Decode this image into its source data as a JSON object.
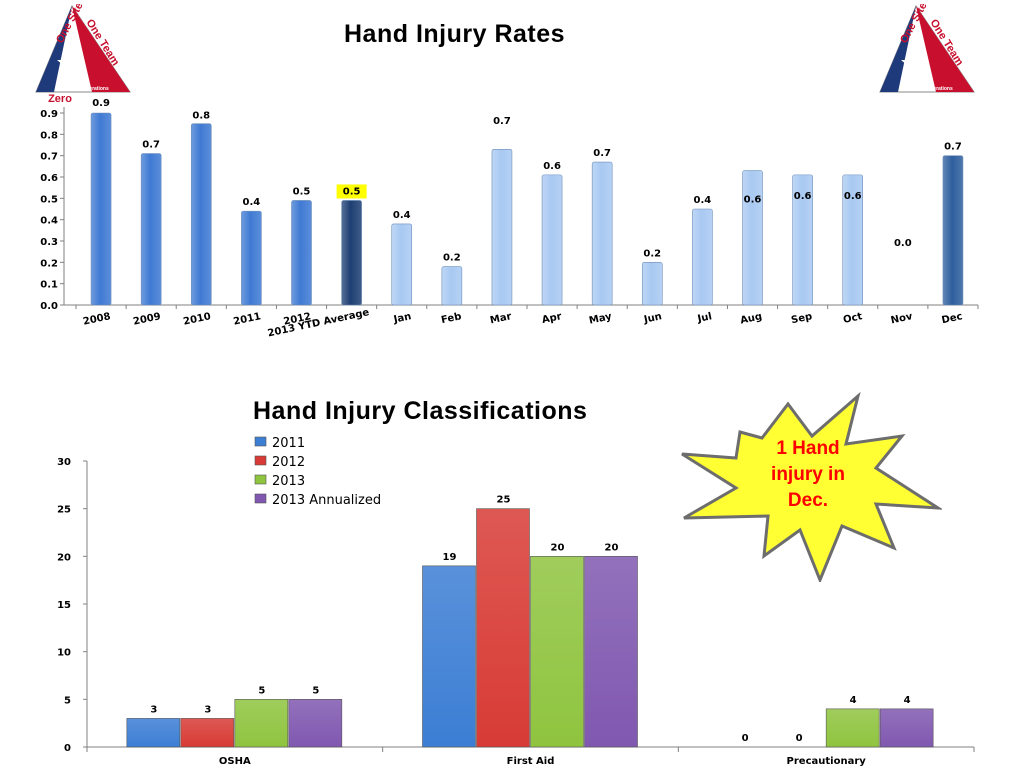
{
  "logo": {
    "line1": "One Site",
    "line2": "One Team",
    "tagline": "Dow Texas Operations",
    "zero_label": "Zero",
    "colors": {
      "red": "#c8102e",
      "blue": "#1f3a7a",
      "white": "#ffffff"
    }
  },
  "callout": {
    "text": "1 Hand injury in Dec.",
    "fill": "#ffff33",
    "stroke": "#6d6d6d",
    "text_color": "#ff0000"
  },
  "chart_data": [
    {
      "type": "bar",
      "title": "Hand Injury Rates",
      "categories": [
        "2008",
        "2009",
        "2010",
        "2011",
        "2012",
        "2013 YTD Average",
        "Jan",
        "Feb",
        "Mar",
        "Apr",
        "May",
        "Jun",
        "Jul",
        "Aug",
        "Sep",
        "Oct",
        "Nov",
        "Dec"
      ],
      "values": [
        0.9,
        0.71,
        0.85,
        0.44,
        0.49,
        0.49,
        0.38,
        0.18,
        0.73,
        0.61,
        0.67,
        0.2,
        0.45,
        0.63,
        0.61,
        0.61,
        0.0,
        0.7
      ],
      "data_labels": [
        "0.9",
        "0.7",
        "0.8",
        "0.4",
        "0.5",
        "0.5",
        "0.4",
        "0.2",
        "0.7",
        "0.6",
        "0.7",
        "0.2",
        "0.4",
        "0.6",
        "0.6",
        "0.6",
        "0.0",
        "0.7"
      ],
      "highlighted_label": "0.5",
      "y_ticks": [
        "0.0",
        "0.1",
        "0.2",
        "0.3",
        "0.4",
        "0.5",
        "0.6",
        "0.7",
        "0.8",
        "0.9"
      ],
      "ylim": [
        0,
        0.9
      ],
      "grid": false,
      "colors": {
        "annual": "#3f7ad3",
        "ytd": "#1e3f73",
        "monthly": "#a9c9f2",
        "dec": "#2f5f9e",
        "highlight": "#ffff00"
      }
    },
    {
      "type": "bar",
      "title": "Hand Injury Classifications",
      "categories": [
        "OSHA",
        "First Aid",
        "Precautionary"
      ],
      "series": [
        {
          "name": "2011",
          "values": [
            3,
            19,
            0
          ],
          "color": "#3c7ed4"
        },
        {
          "name": "2012",
          "values": [
            3,
            25,
            0
          ],
          "color": "#d83b35"
        },
        {
          "name": "2013",
          "values": [
            5,
            20,
            4
          ],
          "color": "#8fc43f"
        },
        {
          "name": "2013 Annualized",
          "values": [
            5,
            20,
            4
          ],
          "color": "#8058b0"
        }
      ],
      "y_ticks": [
        "0",
        "5",
        "10",
        "15",
        "20",
        "25",
        "30"
      ],
      "ylim": [
        0,
        30
      ],
      "grid": false,
      "legend_position": "top-left"
    }
  ]
}
